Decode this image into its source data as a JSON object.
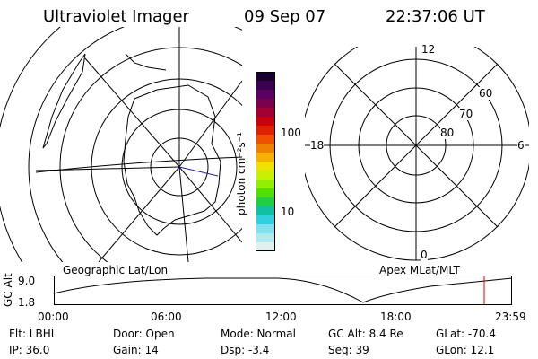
{
  "header": {
    "title": "Ultraviolet Imager",
    "date": "09 Sep 07",
    "time": "22:37:06 UT"
  },
  "left_panel": {
    "label": "Geographic Lat/Lon"
  },
  "colorbar": {
    "unit_label": "photon cm⁻²s⁻¹",
    "tick_top": "100",
    "tick_bottom": "10",
    "colors": [
      "#1a0030",
      "#3a0050",
      "#5a0060",
      "#7a0050",
      "#a00030",
      "#c80010",
      "#e02000",
      "#f05000",
      "#f08000",
      "#f8b000",
      "#f0e000",
      "#c8f000",
      "#90f000",
      "#50e000",
      "#20d040",
      "#10c0a0",
      "#30d0e0",
      "#80e0f0",
      "#b0e8f0",
      "#e0f0f0"
    ]
  },
  "right_panel": {
    "label": "Apex MLat/MLT",
    "mlt_12": "12",
    "mlt_6": "6",
    "mlt_18": "18",
    "mlt_0": "0",
    "lat_60": "60",
    "lat_70": "70",
    "lat_80": "80"
  },
  "timeline": {
    "axis_label": "GC Alt",
    "y_top": "9.0",
    "y_bottom": "1.8",
    "ticks": [
      "00:00",
      "06:00",
      "12:00",
      "18:00",
      "23:59"
    ],
    "marker_color": "#e00000"
  },
  "info": {
    "flt": "Flt: LBHL",
    "ip": "IP: 36.0",
    "door": "Door: Open",
    "gain": "Gain: 14",
    "mode": "Mode: Normal",
    "dsp": "Dsp:    -3.4",
    "gcalt": "GC Alt: 8.4 Re",
    "seq": "Seq: 39",
    "glat": "GLat: -70.4",
    "glon": "GLon:  12.1"
  }
}
